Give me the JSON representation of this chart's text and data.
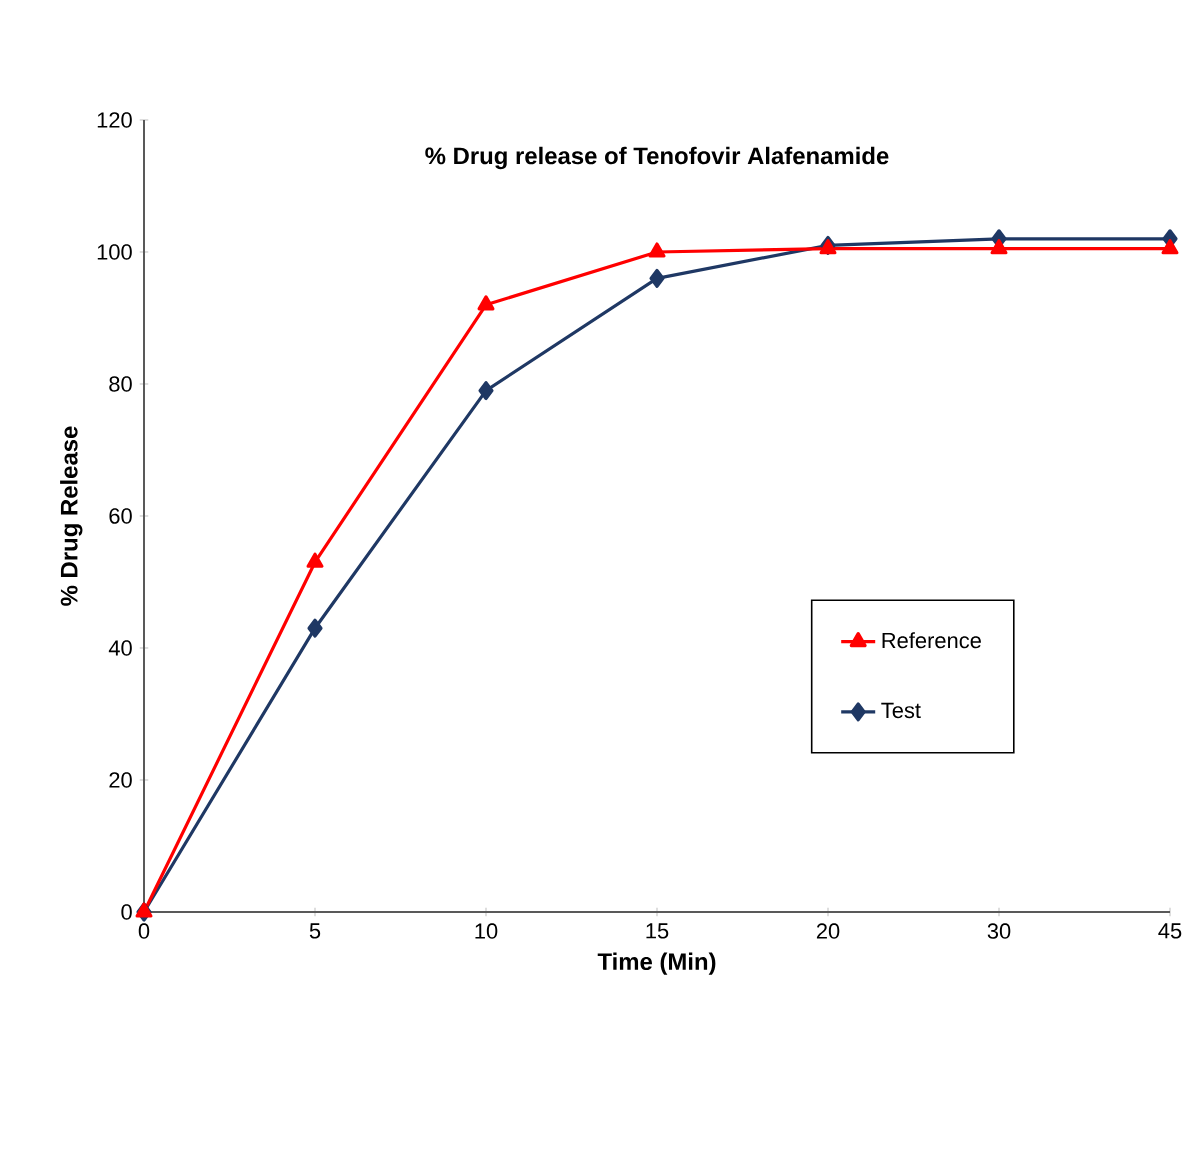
{
  "chart_data": {
    "type": "line",
    "title": "% Drug release of  Tenofovir Alafenamide",
    "xlabel": "Time (Min)",
    "ylabel": "% Drug Release",
    "categories": [
      "0",
      "5",
      "10",
      "15",
      "20",
      "30",
      "45"
    ],
    "series": [
      {
        "name": "Reference",
        "color": "#ff0000",
        "marker": "triangle",
        "values": [
          0,
          53,
          92,
          100,
          100.5,
          100.5,
          100.5
        ]
      },
      {
        "name": "Test",
        "color": "#1f3864",
        "marker": "diamond",
        "values": [
          0,
          43,
          79,
          96,
          101,
          102,
          102
        ]
      }
    ],
    "ylim": [
      0,
      120
    ],
    "yticks": [
      0,
      20,
      40,
      60,
      80,
      100,
      120
    ],
    "legend": "right",
    "grid": false,
    "line_style": "solid"
  }
}
